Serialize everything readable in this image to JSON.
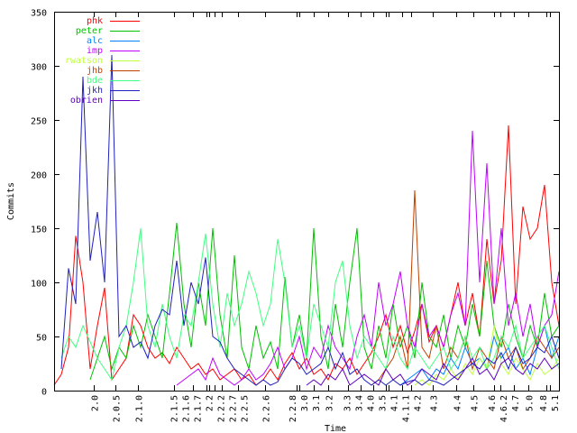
{
  "chart_data": {
    "type": "line",
    "title": "",
    "xlabel": "Time",
    "ylabel": "Commits",
    "ylim": [
      0,
      350
    ],
    "xlim": [
      0,
      70
    ],
    "yticks": [
      0,
      50,
      100,
      150,
      200,
      250,
      300,
      350
    ],
    "grid": false,
    "legend_placement": "top-left",
    "xticks": [
      {
        "label": "2.0",
        "x": 5.5
      },
      {
        "label": "2.0.5",
        "x": 8.5
      },
      {
        "label": "2.1.0",
        "x": 11.6
      },
      {
        "label": "2.1.5",
        "x": 16.6
      },
      {
        "label": "2.1.6",
        "x": 19.3
      },
      {
        "label": "2.1.7",
        "x": 21.1
      },
      {
        "label": "2.2",
        "x": 21.5
      },
      {
        "label": "2.2.2",
        "x": 22.3
      },
      {
        "label": "2.2.7",
        "x": 23.3
      },
      {
        "label": "2.2.5",
        "x": 25.5
      },
      {
        "label": "2.2.6",
        "x": 29.3
      },
      {
        "label": "2.2.8",
        "x": 33.6
      },
      {
        "label": "3.0",
        "x": 34
      },
      {
        "label": "3.1",
        "x": 36
      },
      {
        "label": "3.2",
        "x": 38
      },
      {
        "label": "3.3",
        "x": 40.8
      },
      {
        "label": "3.4",
        "x": 42.5
      },
      {
        "label": "4.0",
        "x": 44.3
      },
      {
        "label": "3.5",
        "x": 46
      },
      {
        "label": "4.1",
        "x": 46.4
      },
      {
        "label": "4.1.1",
        "x": 48.3
      },
      {
        "label": "4.2",
        "x": 49.5
      },
      {
        "label": "4.3",
        "x": 52.5
      },
      {
        "label": "4.4",
        "x": 55.8
      },
      {
        "label": "4.5",
        "x": 58.1
      },
      {
        "label": "4.6",
        "x": 61
      },
      {
        "label": "4.6.2",
        "x": 61.9
      },
      {
        "label": "4.7",
        "x": 63.8
      },
      {
        "label": "5.0",
        "x": 65.8
      },
      {
        "label": "4.8",
        "x": 68.3
      },
      {
        "label": "5.1",
        "x": 68.8
      }
    ],
    "series": [
      {
        "name": "phk",
        "color": "#ff0000",
        "start": 0,
        "values": [
          5,
          15,
          40,
          143,
          100,
          20,
          60,
          95,
          10,
          20,
          30,
          70,
          60,
          40,
          30,
          35,
          25,
          40,
          30,
          20,
          25,
          15,
          20,
          10,
          15,
          20,
          10,
          15,
          5,
          10,
          20,
          10,
          25,
          35,
          20,
          30,
          15,
          20,
          10,
          25,
          20,
          30,
          15,
          25,
          35,
          50,
          70,
          40,
          60,
          35,
          55,
          80,
          45,
          60,
          40,
          70,
          100,
          60,
          90,
          50,
          140,
          80,
          120,
          245,
          80,
          170,
          140,
          150,
          190,
          100,
          60
        ]
      },
      {
        "name": "peter",
        "color": "#00c000",
        "start": 5,
        "values": [
          10,
          30,
          50,
          20,
          40,
          30,
          60,
          40,
          70,
          50,
          30,
          90,
          155,
          80,
          40,
          100,
          60,
          150,
          70,
          30,
          125,
          40,
          20,
          60,
          30,
          45,
          20,
          105,
          40,
          70,
          30,
          150,
          50,
          20,
          80,
          40,
          100,
          150,
          40,
          20,
          60,
          30,
          80,
          40,
          60,
          30,
          100,
          50,
          40,
          70,
          30,
          60,
          40,
          80,
          50,
          120,
          60,
          40,
          80,
          50,
          30,
          60,
          40,
          90,
          50,
          60
        ]
      },
      {
        "name": "alc",
        "color": "#0080ff",
        "start": 48,
        "values": [
          5,
          10,
          15,
          20,
          10,
          20,
          15,
          30,
          20,
          40,
          25,
          30,
          20,
          50,
          30,
          40,
          20,
          30,
          15,
          40,
          60,
          30,
          50
        ]
      },
      {
        "name": "imp",
        "color": "#c000ff",
        "start": 17,
        "values": [
          5,
          10,
          15,
          20,
          10,
          30,
          15,
          10,
          5,
          10,
          20,
          10,
          15,
          25,
          40,
          20,
          30,
          50,
          20,
          40,
          30,
          60,
          40,
          30,
          20,
          50,
          70,
          40,
          100,
          60,
          80,
          110,
          60,
          40,
          80,
          50,
          60,
          40,
          70,
          90,
          60,
          240,
          100,
          210,
          80,
          150,
          60,
          90,
          50,
          80,
          40,
          60,
          70,
          110
        ]
      },
      {
        "name": "rwatson",
        "color": "#c0ff40",
        "start": 50,
        "values": [
          5,
          10,
          5,
          15,
          10,
          20,
          10,
          25,
          15,
          30,
          20,
          60,
          25,
          15,
          30,
          20,
          10,
          25,
          15,
          20,
          30
        ]
      },
      {
        "name": "jhb",
        "color": "#c04000",
        "start": 44,
        "values": [
          5,
          10,
          20,
          30,
          50,
          20,
          185,
          40,
          30,
          60,
          20,
          40,
          30,
          50,
          20,
          40,
          30,
          20,
          50,
          30,
          40,
          20,
          30,
          50,
          40,
          30,
          40
        ]
      },
      {
        "name": "bde",
        "color": "#40ff80",
        "start": 1,
        "values": [
          30,
          50,
          40,
          60,
          45,
          30,
          20,
          10,
          40,
          60,
          100,
          150,
          60,
          40,
          80,
          50,
          30,
          70,
          60,
          100,
          145,
          80,
          40,
          90,
          60,
          80,
          110,
          90,
          60,
          80,
          140,
          100,
          40,
          60,
          30,
          80,
          60,
          40,
          100,
          120,
          60,
          30,
          50,
          40,
          30,
          20,
          50,
          30,
          20,
          40,
          30,
          20,
          30,
          40,
          20,
          30,
          50,
          30,
          40,
          20,
          30,
          50,
          40,
          60,
          30,
          40,
          50,
          60,
          40,
          20
        ]
      },
      {
        "name": "jkh",
        "color": "#2020c0",
        "start": 1,
        "values": [
          20,
          113,
          80,
          290,
          120,
          165,
          100,
          310,
          50,
          60,
          40,
          45,
          30,
          60,
          75,
          70,
          120,
          60,
          100,
          80,
          123,
          50,
          45,
          30,
          20,
          15,
          10,
          5,
          10,
          5,
          8,
          20,
          30,
          25,
          15,
          20,
          25,
          40,
          20,
          35,
          15,
          20,
          10,
          5,
          10,
          5,
          10,
          5,
          8,
          10,
          5,
          10,
          8,
          5,
          10,
          15,
          20,
          25,
          20,
          30,
          25,
          35,
          20,
          40,
          25,
          30,
          40,
          35,
          50,
          30
        ]
      },
      {
        "name": "obrien",
        "color": "#6000c0",
        "start": 35,
        "values": [
          5,
          10,
          5,
          15,
          10,
          20,
          5,
          10,
          15,
          10,
          5,
          20,
          10,
          15,
          5,
          10,
          20,
          15,
          10,
          25,
          15,
          10,
          20,
          30,
          15,
          20,
          10,
          25,
          30,
          20,
          15,
          25,
          20,
          30,
          20,
          25
        ]
      }
    ]
  }
}
